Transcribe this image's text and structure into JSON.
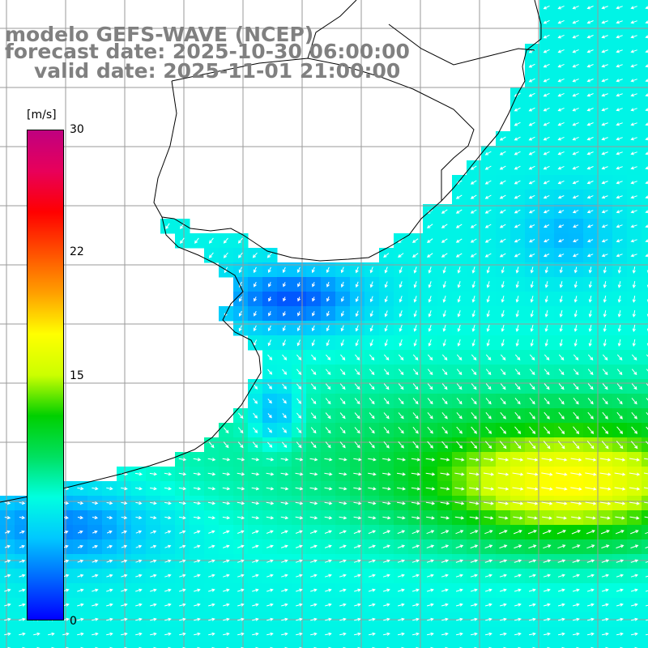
{
  "header": {
    "model_line": "modelo GEFS-WAVE (NCEP)",
    "forecast_line": "forecast date: 2025-10-30 06:00:00",
    "valid_line": "valid date: 2025-11-01 21:00:00"
  },
  "colorbar": {
    "unit": "[m/s]",
    "min": 0,
    "max": 30,
    "ticks": [
      "30",
      "22",
      "15",
      "0"
    ],
    "tick_values": [
      30,
      22,
      15,
      0
    ],
    "colors": [
      "#0000ff",
      "#0066ff",
      "#00c8ff",
      "#00ffe0",
      "#00e060",
      "#00d000",
      "#ccff00",
      "#ffff00",
      "#ffa000",
      "#ff5000",
      "#ff0000",
      "#e8005a",
      "#c00080"
    ]
  },
  "map": {
    "region": "South Atlantic off southern Brazil / Uruguay / Argentina",
    "field": "wind speed with direction arrows",
    "land_color": "#ffffff",
    "grid_color": "#999999",
    "arrow_color": "#ffffff"
  }
}
